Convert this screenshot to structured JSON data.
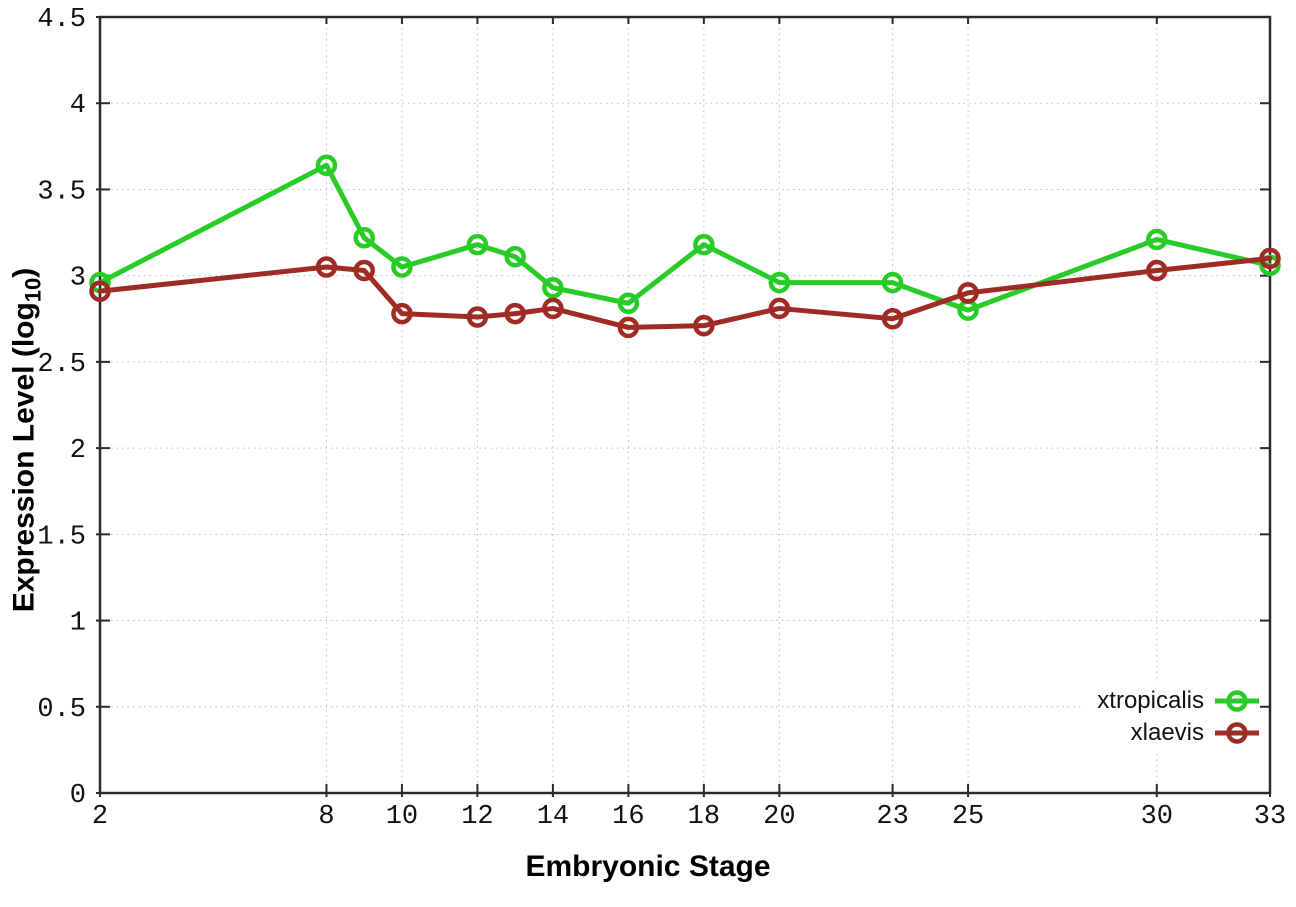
{
  "chart_data": {
    "type": "line",
    "title": "",
    "xlabel": "Embryonic Stage",
    "ylabel": "Expression Level (log10)",
    "ylabel_parts": {
      "prefix": "Expression Level (log",
      "subscript": "10",
      "suffix": ")"
    },
    "xlim": [
      2,
      33
    ],
    "ylim": [
      0,
      4.5
    ],
    "xticks": [
      2,
      8,
      10,
      12,
      14,
      16,
      18,
      20,
      23,
      25,
      30,
      33
    ],
    "xtick_labels": [
      "2",
      "8",
      "10",
      "12",
      "14",
      "16",
      "18",
      "20",
      "23",
      "25",
      "30",
      "33"
    ],
    "yticks": [
      0,
      0.5,
      1,
      1.5,
      2,
      2.5,
      3,
      3.5,
      4,
      4.5
    ],
    "ytick_labels": [
      "0",
      "0.5",
      "1",
      "1.5",
      "2",
      "2.5",
      "3",
      "3.5",
      "4",
      "4.5"
    ],
    "grid": true,
    "legend_position": "inside-bottom-right",
    "x": [
      2,
      8,
      9,
      10,
      12,
      13,
      14,
      16,
      18,
      20,
      23,
      25,
      30,
      33
    ],
    "series": [
      {
        "name": "xtropicalis",
        "color": "#27cc27",
        "marker": "open-circle",
        "values": [
          2.96,
          3.64,
          3.22,
          3.05,
          3.18,
          3.11,
          2.93,
          2.84,
          3.18,
          2.96,
          2.96,
          2.8,
          3.21,
          3.06
        ]
      },
      {
        "name": "xlaevis",
        "color": "#9e2b24",
        "marker": "open-circle",
        "values": [
          2.91,
          3.05,
          3.03,
          2.78,
          2.76,
          2.78,
          2.81,
          2.7,
          2.71,
          2.81,
          2.75,
          2.9,
          3.03,
          3.1
        ]
      }
    ],
    "axis_color": "#2a2a2a",
    "grid_color": "#bcbcbc",
    "tick_text_color": "#111111"
  }
}
